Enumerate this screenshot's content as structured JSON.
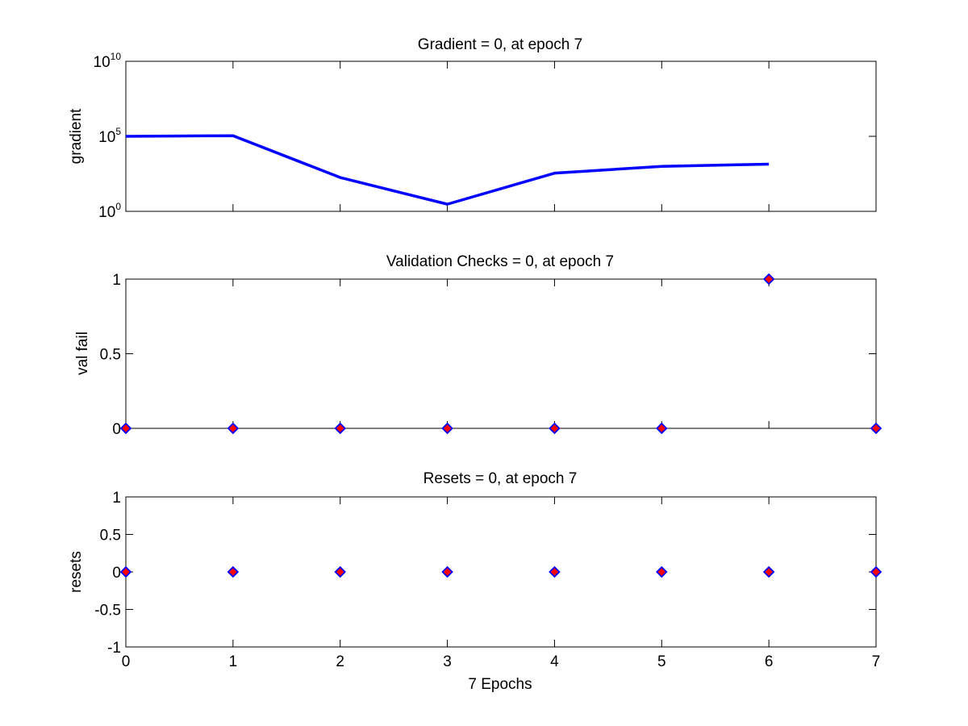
{
  "chart_data": [
    {
      "type": "line",
      "title": "Gradient = 0, at epoch 7",
      "xlabel": "",
      "ylabel": "gradient",
      "yscale": "log",
      "xlim": [
        0,
        7
      ],
      "ylim": [
        1,
        10000000000
      ],
      "x": [
        0,
        1,
        2,
        3,
        4,
        5,
        6
      ],
      "series": [
        {
          "values": [
            100000,
            110000,
            180,
            3,
            350,
            1000,
            1400
          ]
        }
      ],
      "yticks": [
        {
          "value": 1,
          "base": "10",
          "exp": "0"
        },
        {
          "value": 100000,
          "base": "10",
          "exp": "5"
        },
        {
          "value": 10000000000,
          "base": "10",
          "exp": "10"
        }
      ],
      "xticks_shown": false,
      "line_color": "#0000ff",
      "grid": false
    },
    {
      "type": "scatter",
      "title": "Validation Checks = 0, at epoch 7",
      "xlabel": "",
      "ylabel": "val fail",
      "xlim": [
        0,
        7
      ],
      "ylim": [
        0,
        1
      ],
      "x": [
        0,
        1,
        2,
        3,
        4,
        5,
        6,
        7
      ],
      "series": [
        {
          "values": [
            0,
            0,
            0,
            0,
            0,
            0,
            1,
            0
          ]
        }
      ],
      "yticks": [
        "0",
        "0.5",
        "1"
      ],
      "xticks_shown": false,
      "marker": "diamond",
      "marker_face": "#ff0000",
      "marker_edge": "#0000ff",
      "grid": false
    },
    {
      "type": "scatter",
      "title": "Resets = 0, at epoch 7",
      "xlabel": "7 Epochs",
      "ylabel": "resets",
      "xlim": [
        0,
        7
      ],
      "ylim": [
        -1,
        1
      ],
      "x": [
        0,
        1,
        2,
        3,
        4,
        5,
        6,
        7
      ],
      "series": [
        {
          "values": [
            0,
            0,
            0,
            0,
            0,
            0,
            0,
            0
          ]
        }
      ],
      "yticks": [
        "-1",
        "-0.5",
        "0",
        "0.5",
        "1"
      ],
      "xticks": [
        "0",
        "1",
        "2",
        "3",
        "4",
        "5",
        "6",
        "7"
      ],
      "xticks_shown": true,
      "marker": "diamond",
      "marker_face": "#ff0000",
      "marker_edge": "#0000ff",
      "grid": false
    }
  ]
}
